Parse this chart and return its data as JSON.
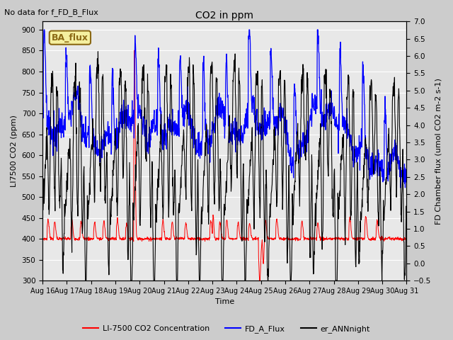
{
  "title": "CO2 in ppm",
  "top_left_text": "No data for f_FD_B_Flux",
  "box_label": "BA_flux",
  "xlabel": "Time",
  "ylabel_left": "LI7500 CO2 (ppm)",
  "ylabel_right": "FD Chamber flux (umol CO2 m-2 s-1)",
  "ylim_left": [
    300,
    920
  ],
  "ylim_right": [
    -0.5,
    7.0
  ],
  "yticks_left": [
    300,
    350,
    400,
    450,
    500,
    550,
    600,
    650,
    700,
    750,
    800,
    850,
    900
  ],
  "yticks_right": [
    -0.5,
    0.0,
    0.5,
    1.0,
    1.5,
    2.0,
    2.5,
    3.0,
    3.5,
    4.0,
    4.5,
    5.0,
    5.5,
    6.0,
    6.5,
    7.0
  ],
  "xtick_labels": [
    "Aug 16",
    "Aug 17",
    "Aug 18",
    "Aug 19",
    "Aug 20",
    "Aug 21",
    "Aug 22",
    "Aug 23",
    "Aug 24",
    "Aug 25",
    "Aug 26",
    "Aug 27",
    "Aug 28",
    "Aug 29",
    "Aug 30",
    "Aug 31"
  ],
  "legend_labels": [
    "LI-7500 CO2 Concentration",
    "FD_A_Flux",
    "er_ANNnight"
  ],
  "line_colors": [
    "#ff0000",
    "#0000ff",
    "#000000"
  ],
  "bg_color": "#cccccc",
  "plot_bg_color": "#e8e8e8",
  "box_fill": "#f5f0a0",
  "box_edge": "#8b6914",
  "figsize": [
    6.4,
    4.8
  ],
  "dpi": 100
}
